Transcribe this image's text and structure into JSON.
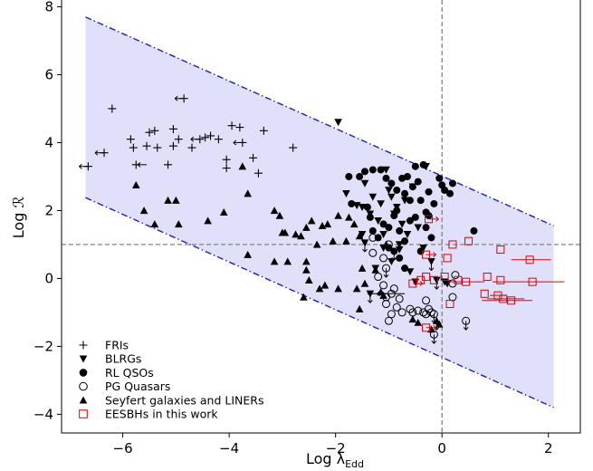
{
  "chart_data": {
    "type": "scatter",
    "xlabel": "Log λ",
    "xlabel_sub": "Edd",
    "ylabel": "Log ℛ",
    "xlim": [
      -7.15,
      2.6
    ],
    "ylim": [
      -4.55,
      8.2
    ],
    "xticks": [
      -6,
      -4,
      -2,
      0,
      2
    ],
    "yticks": [
      -4,
      -2,
      0,
      2,
      4,
      6,
      8
    ],
    "xtick_labels": [
      "−6",
      "−4",
      "−2",
      "0",
      "2"
    ],
    "ytick_labels": [
      "−4",
      "−2",
      "0",
      "2",
      "4",
      "6",
      "8"
    ],
    "reference_lines": {
      "x": 0,
      "y": 1
    },
    "band": {
      "x_range": [
        -6.7,
        2.1
      ],
      "upper": [
        [
          -6.7,
          7.7
        ],
        [
          2.1,
          1.55
        ]
      ],
      "lower": [
        [
          -6.7,
          2.38
        ],
        [
          2.1,
          -3.8
        ]
      ],
      "fill": "#e0e0fb",
      "line_color": "#1c1ccf"
    },
    "legend_position": "lower-left",
    "series": [
      {
        "name": "FRIs",
        "marker": "plus",
        "color": "#000000",
        "points": [
          [
            -6.65,
            3.3
          ],
          [
            -6.35,
            3.7
          ],
          [
            -6.2,
            5.0
          ],
          [
            -5.85,
            4.1
          ],
          [
            -5.8,
            3.85
          ],
          [
            -5.75,
            3.35
          ],
          [
            -5.55,
            3.9
          ],
          [
            -5.5,
            4.3
          ],
          [
            -5.4,
            4.35
          ],
          [
            -5.35,
            3.85
          ],
          [
            -5.15,
            3.35
          ],
          [
            -5.05,
            4.4
          ],
          [
            -5.05,
            3.9
          ],
          [
            -4.95,
            4.1
          ],
          [
            -4.85,
            5.3
          ],
          [
            -4.7,
            3.85
          ],
          [
            -4.55,
            4.1
          ],
          [
            -4.45,
            4.15
          ],
          [
            -4.35,
            4.2
          ],
          [
            -4.2,
            4.1
          ],
          [
            -4.05,
            3.5
          ],
          [
            -4.05,
            3.25
          ],
          [
            -3.95,
            4.5
          ],
          [
            -3.8,
            4.45
          ],
          [
            -3.75,
            4.0
          ],
          [
            -3.55,
            3.55
          ],
          [
            -3.45,
            3.1
          ],
          [
            -3.35,
            4.35
          ],
          [
            -2.8,
            3.85
          ]
        ],
        "left_arrows": [
          [
            -6.65,
            3.3
          ],
          [
            -6.35,
            3.7
          ],
          [
            -5.55,
            3.35
          ],
          [
            -4.85,
            5.3
          ],
          [
            -4.55,
            4.1
          ],
          [
            -3.75,
            4.0
          ]
        ]
      },
      {
        "name": "BLRGs",
        "marker": "triangle-down",
        "color": "#000000",
        "points": [
          [
            -1.95,
            4.6
          ],
          [
            -1.8,
            2.5
          ],
          [
            -1.6,
            2.15
          ],
          [
            -1.5,
            2.1
          ],
          [
            -1.45,
            2.8
          ],
          [
            -1.35,
            1.9
          ],
          [
            -1.3,
            2.4
          ],
          [
            -1.2,
            1.7
          ],
          [
            -1.15,
            2.2
          ],
          [
            -1.05,
            3.2
          ],
          [
            -1.0,
            2.6
          ],
          [
            -0.95,
            2.4
          ],
          [
            -0.9,
            1.9
          ],
          [
            -0.85,
            2.1
          ],
          [
            -0.8,
            1.0
          ],
          [
            -0.75,
            1.6
          ],
          [
            -0.7,
            2.3
          ],
          [
            -0.65,
            1.3
          ],
          [
            -0.55,
            2.7
          ],
          [
            -0.45,
            1.5
          ],
          [
            -0.35,
            0.9
          ],
          [
            -0.6,
            0.2
          ],
          [
            -0.5,
            -0.1
          ],
          [
            -0.3,
            3.3
          ],
          [
            -1.5,
            1.3
          ],
          [
            -1.45,
            1.05
          ],
          [
            -1.25,
            0.3
          ],
          [
            -1.35,
            -0.45
          ],
          [
            -1.1,
            0.9
          ],
          [
            -0.95,
            0.5
          ],
          [
            -0.8,
            0.85
          ],
          [
            -0.2,
            0.5
          ],
          [
            -0.1,
            -0.05
          ],
          [
            0.05,
            -0.1
          ],
          [
            0.1,
            -0.15
          ],
          [
            -1.1,
            1.3
          ]
        ],
        "down_arrows": [
          [
            -1.45,
            1.05
          ],
          [
            -1.35,
            -0.45
          ],
          [
            -0.2,
            0.5
          ],
          [
            -0.1,
            -0.05
          ]
        ]
      },
      {
        "name": "RL QSOs",
        "marker": "circle",
        "color": "#000000",
        "points": [
          [
            -1.7,
            2.2
          ],
          [
            -1.75,
            3.0
          ],
          [
            -1.55,
            3.0
          ],
          [
            -1.45,
            3.15
          ],
          [
            -1.3,
            3.2
          ],
          [
            -1.15,
            3.2
          ],
          [
            -1.05,
            2.95
          ],
          [
            -0.95,
            2.8
          ],
          [
            -0.85,
            2.6
          ],
          [
            -0.85,
            2.0
          ],
          [
            -0.75,
            2.95
          ],
          [
            -0.7,
            2.5
          ],
          [
            -0.65,
            3.0
          ],
          [
            -0.6,
            2.3
          ],
          [
            -0.55,
            2.7
          ],
          [
            -0.5,
            3.3
          ],
          [
            -0.45,
            2.85
          ],
          [
            -0.4,
            2.3
          ],
          [
            -0.35,
            3.35
          ],
          [
            -0.3,
            1.95
          ],
          [
            -0.25,
            2.55
          ],
          [
            -0.15,
            2.2
          ],
          [
            -0.05,
            2.95
          ],
          [
            0.0,
            2.75
          ],
          [
            0.05,
            2.6
          ],
          [
            0.15,
            2.5
          ],
          [
            0.2,
            2.8
          ],
          [
            -1.4,
            2.1
          ],
          [
            -1.35,
            1.8
          ],
          [
            -1.3,
            1.4
          ],
          [
            -1.2,
            1.2
          ],
          [
            -1.1,
            1.6
          ],
          [
            -1.0,
            1.5
          ],
          [
            -0.9,
            1.85
          ],
          [
            -0.8,
            1.4
          ],
          [
            -0.7,
            1.1
          ],
          [
            -0.6,
            1.7
          ],
          [
            -0.5,
            1.8
          ],
          [
            -0.4,
            0.8
          ],
          [
            -0.3,
            1.5
          ],
          [
            -0.2,
            1.2
          ],
          [
            -1.0,
            0.9
          ],
          [
            -0.9,
            0.8
          ],
          [
            -0.8,
            0.6
          ],
          [
            -0.7,
            0.3
          ],
          [
            0.6,
            1.4
          ],
          [
            -0.25,
            1.85
          ]
        ],
        "down_arrows": [
          [
            -0.9,
            0.8
          ]
        ]
      },
      {
        "name": "PG Quasars",
        "marker": "circle-open",
        "color": "#000000",
        "points": [
          [
            -1.3,
            1.2
          ],
          [
            -1.3,
            0.75
          ],
          [
            -1.1,
            0.6
          ],
          [
            -1.0,
            1.0
          ],
          [
            -1.05,
            0.3
          ],
          [
            -1.1,
            -0.2
          ],
          [
            -1.05,
            -0.55
          ],
          [
            -1.05,
            -0.75
          ],
          [
            -0.95,
            -0.45
          ],
          [
            -0.95,
            -1.05
          ],
          [
            -0.85,
            -0.85
          ],
          [
            -0.8,
            -0.6
          ],
          [
            -0.75,
            -1.0
          ],
          [
            -0.6,
            -0.9
          ],
          [
            -0.55,
            -1.0
          ],
          [
            -0.45,
            -0.95
          ],
          [
            -0.35,
            -1.0
          ],
          [
            -0.3,
            -1.05
          ],
          [
            -0.25,
            -0.9
          ],
          [
            -0.3,
            -0.65
          ],
          [
            -0.2,
            -1.0
          ],
          [
            -0.15,
            -1.05
          ],
          [
            -0.15,
            -1.65
          ],
          [
            0.2,
            -0.15
          ],
          [
            0.25,
            0.1
          ],
          [
            0.2,
            -0.55
          ],
          [
            0.45,
            -1.25
          ],
          [
            -1.2,
            0.05
          ],
          [
            -0.9,
            -0.3
          ],
          [
            -1.0,
            -1.25
          ]
        ],
        "left_arrows": [
          [
            -1.05,
            -0.45
          ]
        ],
        "down_arrows": [
          [
            -1.05,
            0.3
          ],
          [
            -0.15,
            -1.65
          ],
          [
            0.45,
            -1.25
          ],
          [
            -0.15,
            -1.05
          ]
        ]
      },
      {
        "name": "Seyfert galaxies and LINERs",
        "marker": "triangle-up",
        "color": "#000000",
        "points": [
          [
            -5.75,
            2.75
          ],
          [
            -5.6,
            2.0
          ],
          [
            -5.4,
            1.6
          ],
          [
            -5.15,
            2.3
          ],
          [
            -5.0,
            2.3
          ],
          [
            -4.95,
            1.6
          ],
          [
            -4.4,
            1.7
          ],
          [
            -4.1,
            1.95
          ],
          [
            -3.75,
            3.3
          ],
          [
            -3.65,
            2.5
          ],
          [
            -3.15,
            2.0
          ],
          [
            -3.05,
            1.85
          ],
          [
            -3.0,
            1.35
          ],
          [
            -2.95,
            1.35
          ],
          [
            -2.75,
            1.3
          ],
          [
            -2.65,
            1.25
          ],
          [
            -2.55,
            1.5
          ],
          [
            -2.45,
            1.7
          ],
          [
            -2.35,
            1.0
          ],
          [
            -2.25,
            1.55
          ],
          [
            -2.15,
            1.6
          ],
          [
            -2.05,
            1.1
          ],
          [
            -1.95,
            1.85
          ],
          [
            -1.8,
            1.1
          ],
          [
            -1.75,
            1.8
          ],
          [
            -1.65,
            1.6
          ],
          [
            -1.55,
            1.25
          ],
          [
            -1.6,
            -0.3
          ],
          [
            -1.5,
            0.3
          ],
          [
            -1.45,
            -0.15
          ],
          [
            -2.55,
            0.5
          ],
          [
            -2.55,
            0.25
          ],
          [
            -2.5,
            -0.05
          ],
          [
            -2.3,
            -0.3
          ],
          [
            -2.2,
            -0.2
          ],
          [
            -1.95,
            -0.3
          ],
          [
            -2.6,
            -0.55
          ],
          [
            -3.65,
            0.7
          ],
          [
            -3.15,
            0.5
          ],
          [
            -2.9,
            0.5
          ],
          [
            -1.25,
            0.25
          ],
          [
            -1.15,
            -0.4
          ],
          [
            -1.1,
            -0.5
          ],
          [
            -0.55,
            -1.2
          ],
          [
            -0.45,
            -1.3
          ],
          [
            -0.2,
            -1.5
          ],
          [
            -0.1,
            -1.25
          ],
          [
            -0.05,
            -1.35
          ],
          [
            -1.55,
            -0.9
          ],
          [
            -1.05,
            1.0
          ]
        ],
        "down_arrows": [
          [
            -0.1,
            -1.25
          ]
        ]
      },
      {
        "name": "EESBHs in this work",
        "marker": "square-open",
        "color": "#e00000",
        "points": [
          [
            -0.25,
            1.75
          ],
          [
            -0.3,
            0.7
          ],
          [
            -0.3,
            0.05
          ],
          [
            -0.55,
            -0.15
          ],
          [
            -0.4,
            -0.05
          ],
          [
            0.05,
            0.05
          ],
          [
            0.1,
            0.6
          ],
          [
            0.2,
            1.0
          ],
          [
            0.3,
            -0.05
          ],
          [
            0.45,
            -0.1
          ],
          [
            0.5,
            1.1
          ],
          [
            0.85,
            0.05
          ],
          [
            0.8,
            -0.45
          ],
          [
            1.05,
            -0.5
          ],
          [
            1.1,
            0.85
          ],
          [
            1.1,
            -0.05
          ],
          [
            1.15,
            -0.6
          ],
          [
            1.3,
            -0.65
          ],
          [
            1.65,
            0.55
          ],
          [
            1.7,
            -0.1
          ],
          [
            0.15,
            -0.75
          ],
          [
            -0.3,
            -1.45
          ],
          [
            -0.15,
            -0.05
          ]
        ],
        "right_arrows": [
          [
            -0.25,
            1.75
          ],
          [
            -0.3,
            0.7
          ],
          [
            -0.3,
            -1.45
          ],
          [
            -0.55,
            -0.15
          ]
        ],
        "xerr_segments": [
          [
            1.65,
            0.55,
            1.3,
            2.05
          ],
          [
            1.7,
            -0.1,
            0.95,
            2.3
          ],
          [
            1.05,
            -0.5,
            0.9,
            1.2
          ],
          [
            1.15,
            -0.6,
            0.85,
            1.55
          ],
          [
            1.3,
            -0.65,
            0.75,
            1.7
          ],
          [
            0.45,
            -0.1,
            0.1,
            0.8
          ]
        ]
      }
    ],
    "extra_errbar": [
      [
        -1.15,
        -0.45,
        -1.4,
        -0.7
      ]
    ]
  }
}
